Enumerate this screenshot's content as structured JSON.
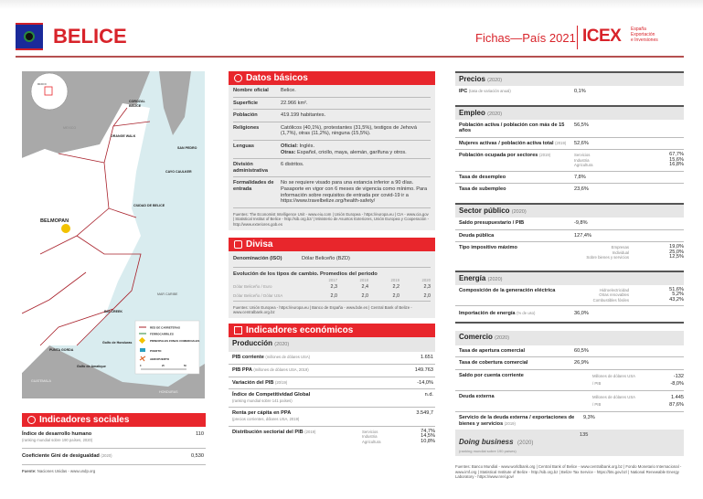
{
  "header": {
    "country": "BELICE",
    "series": "Fichas—País 2021",
    "brand": "ICEX",
    "brand_sub": [
      "España",
      "Exportación",
      "e Inversiones"
    ]
  },
  "colors": {
    "accent": "#e8262c",
    "flag_blue": "#1a2a9a"
  },
  "map": {
    "labels": {
      "mexico_inset": "MEXICO",
      "mexico": "MEXICO",
      "corozal": "COROZAL",
      "belice_n": "BELICE",
      "orange_walk": "ORANGE WALK",
      "san_pedro": "SAN PEDRO",
      "cayo_caulker": "CAYO CAULKER",
      "ciudad": "CIUDAD DE BELICE",
      "belmopan": "BELMOPAN",
      "mar_caribe": "MAR CARIBE",
      "big_creek": "BIG CREEK",
      "punta_gorda": "PUNTA GORDA",
      "golfo_honduras": "Golfo de Honduras",
      "golfo_amatique": "Golfo de Amatique",
      "guatemala": "GUATEMALA",
      "honduras": "HONDURAS"
    },
    "legend": [
      "RED DE CARRETERAS",
      "FERROCARRILES",
      "PRINCIPALES ZONAS COMERCIALES",
      "PUERTO",
      "AEROPUERTO"
    ],
    "scale": [
      "0",
      "25",
      "50"
    ]
  },
  "social": {
    "title": "Indicadores sociales",
    "rows": [
      {
        "k": "Índice de desarrollo humano",
        "sub": "(ranking mundial sobre 190 países, 2020)",
        "v": "110"
      },
      {
        "k": "Coeficiente Gini de desigualdad",
        "small": "(2020)",
        "v": "0,530"
      }
    ],
    "source_b": "Fuente:",
    "source": " Naciones Unidas - www.undp.org"
  },
  "basic": {
    "title": "Datos básicos",
    "rows": [
      {
        "k": "Nombre oficial",
        "v": "Belice."
      },
      {
        "k": "Superficie",
        "v": "22.966 km²."
      },
      {
        "k": "Población",
        "v": "419.199 habitantes."
      },
      {
        "k": "Religiones",
        "v": "Católicos (40,1%), protestantes (31,5%), testigos de Jehová (1,7%), otras (11,2%), ninguna (15,5%)."
      },
      {
        "k": "Lenguas",
        "v1b": "Oficial:",
        "v1": " Inglés.",
        "v2b": "Otras:",
        "v2": " Español, criollo, maya, alemán, garífuna y otros."
      },
      {
        "k": "División administrativa",
        "v": "6 distritos."
      },
      {
        "k": "Formalidades de entrada",
        "v": "No se requiere visado para una estancia inferior a 90 días. Pasaporte en vigor con 6 meses de vigencia como mínimo. Para información sobre requisitos de entrada por covid-19 ir a https://www.travelbelize.org/health-safety/"
      }
    ],
    "source": "Fuentes: The Economist Intelligence Unit - www.eiu.com | Unión Europea - https://europa.eu | CIA - www.cia.gov | Statistical Institut of Belice - http://sib.org.bz/ | Ministerio de Asuntos Exteriores, Unión Europea y Cooperación - http://www.exteriores.gob.es"
  },
  "divisa": {
    "title": "Divisa",
    "denom_k": "Denominación (ISO)",
    "denom_v": "Dólar Beliceño (BZD)",
    "evol": "Evolución de los tipos de cambio. Promedios del periodo",
    "years": [
      "2017",
      "2018",
      "2019",
      "2020"
    ],
    "rows": [
      {
        "k": "Dólar Beliceño / Euro",
        "v": [
          "2,3",
          "2,4",
          "2,2",
          "2,3"
        ]
      },
      {
        "k": "Dólar Beliceño / Dólar USA",
        "v": [
          "2,0",
          "2,0",
          "2,0",
          "2,0"
        ]
      }
    ],
    "source": "Fuentes: Unión Europea - https://europa.eu | Banco de España - www.bde.es | Central Bank of Belize - www.centralbank.org.bz"
  },
  "econ": {
    "title": "Indicadores económicos",
    "prod": {
      "title": "Producción",
      "year": "(2020)",
      "rows": [
        {
          "k": "PIB corriente",
          "small": "(millones de dólares USA)",
          "v": "1.651"
        },
        {
          "k": "PIB PPA",
          "small": "(millones de dólares USA, 2019)",
          "v": "149.763"
        },
        {
          "k": "Variación del PIB",
          "small": "(20/19)",
          "v": "-14,0%"
        },
        {
          "k": "Índice de Competitividad Global",
          "sub": "(ranking mundial sobre 141 países)",
          "v": "n.d."
        },
        {
          "k": "Renta per cápita en PPA",
          "sub": "(precios corrientes, dólares USA, 2019)",
          "v": "3.549,7"
        }
      ],
      "dist": {
        "k": "Distribución sectorial del PIB",
        "small": "(2019)",
        "m": [
          "Servicios",
          "Industria",
          "Agricultura"
        ],
        "v": [
          "74,7%",
          "14,5%",
          "10,8%"
        ]
      }
    }
  },
  "right": {
    "precios": {
      "title": "Precios",
      "year": "(2020)",
      "rows": [
        {
          "k": "IPC",
          "small": "(tasa de variación anual)",
          "v": "0,1%"
        }
      ]
    },
    "empleo": {
      "title": "Empleo",
      "year": "(2020)",
      "r1": {
        "k": "Población activa / población con más de 15 años",
        "v": "56,5%"
      },
      "r2": {
        "k": "Mujeres activas / población activa total",
        "small": "(2019)",
        "v": "52,6%"
      },
      "r3": {
        "k": "Población ocupada por sectores",
        "small": "(2019)",
        "m": [
          "Servicios",
          "Industria",
          "Agricultura"
        ],
        "v": [
          "67,7%",
          "15,6%",
          "16,8%"
        ]
      },
      "r4": {
        "k": "Tasa de desempleo",
        "v": "7,8%"
      },
      "r5": {
        "k": "Tasa de subempleo",
        "v": "23,6%"
      }
    },
    "sector": {
      "title": "Sector público",
      "year": "(2020)",
      "r1": {
        "k": "Saldo presupuestario / PIB",
        "v": "-9,8%"
      },
      "r2": {
        "k": "Deuda pública",
        "v": "127,4%"
      },
      "r3": {
        "k": "Tipo impositivo máximo",
        "m": [
          "Empresas",
          "Individual",
          "Sobre bienes y servicios"
        ],
        "v": [
          "19,0%",
          "25,0%",
          "12,5%"
        ]
      }
    },
    "energia": {
      "title": "Energía",
      "year": "(2020)",
      "r1": {
        "k": "Composición de la generación eléctrica",
        "m": [
          "Hidroelectricidad",
          "Otras renovables",
          "Combustibles fósiles"
        ],
        "v": [
          "51,6%",
          "5,2%",
          "43,2%"
        ]
      },
      "r2": {
        "k": "Importación de energía",
        "small": "(% de uso)",
        "v": "36,0%"
      }
    },
    "comercio": {
      "title": "Comercio",
      "year": "(2020)",
      "r1": {
        "k": "Tasa de apertura comercial",
        "v": "60,5%"
      },
      "r2": {
        "k": "Tasa de cobertura comercial",
        "v": "26,9%"
      },
      "r3": {
        "k": "Saldo por cuenta corriente",
        "m": [
          "Millones de dólares USA",
          "/ PIB"
        ],
        "v": [
          "-132",
          "-8,0%"
        ]
      },
      "r4": {
        "k": "Deuda externa",
        "m": [
          "Millones de dólares USA",
          "/ PIB"
        ],
        "v": [
          "1.445",
          "87,6%"
        ]
      },
      "r5": {
        "k": "Servicio de la deuda externa / exportaciones de bienes y servicios",
        "small": "(2019)",
        "v": "9,3%"
      }
    },
    "doing": {
      "title": "Doing business",
      "year": "(2020)",
      "sub": "(ranking mundial sobre 190 países)",
      "v": "135"
    },
    "source": "Fuentes: Banco Mundial - www.worldbank.org | Central Bank of Belice - www.centralbank.org.bz | Fondo Monetario Internacional - www.imf.org | Statistical Institute of Belize - http://sib.org.bz | Belize Tax Service - https://bts.gov.bz/ | National Renewable Energy Laboratory - https://www.nrel.gov/"
  }
}
